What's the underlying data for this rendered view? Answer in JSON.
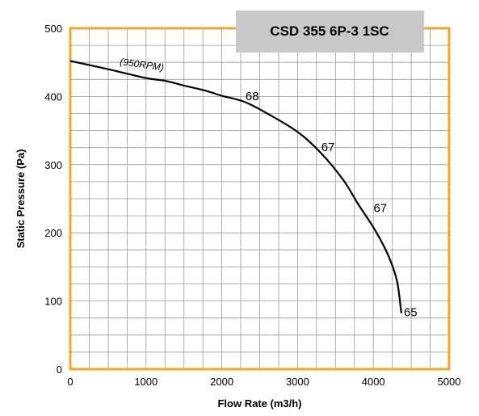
{
  "chart_data": {
    "type": "line",
    "title": "CSD 355 6P-3 1SC",
    "xlabel": "Flow Rate (m3/h)",
    "ylabel": "Static Pressure (Pa)",
    "xlim": [
      0,
      5000
    ],
    "ylim": [
      0,
      500
    ],
    "xticks": [
      "0",
      "1000",
      "2000",
      "3000",
      "4000",
      "5000"
    ],
    "yticks": [
      "0",
      "100",
      "200",
      "300",
      "400",
      "500"
    ],
    "grid": true,
    "curve_label": "(950RPM)",
    "series": [
      {
        "x": [
          0,
          500,
          1000,
          1250,
          1500,
          1800,
          2000,
          2300,
          2600,
          3000,
          3300,
          3600,
          3800,
          4000,
          4150,
          4250,
          4320,
          4370
        ],
        "y": [
          452,
          440,
          427,
          423,
          416,
          408,
          401,
          392,
          375,
          348,
          318,
          278,
          242,
          208,
          178,
          152,
          125,
          82
        ]
      }
    ],
    "annotations": [
      {
        "text": "68",
        "x": 2270,
        "y": 397
      },
      {
        "text": "67",
        "x": 3270,
        "y": 322
      },
      {
        "text": "67",
        "x": 3960,
        "y": 233
      },
      {
        "text": "65",
        "x": 4360,
        "y": 80
      }
    ],
    "colors": {
      "frame": "#f5a623",
      "grid": "#999999",
      "curve": "#000000",
      "title_box": "#c8c8c8"
    }
  }
}
